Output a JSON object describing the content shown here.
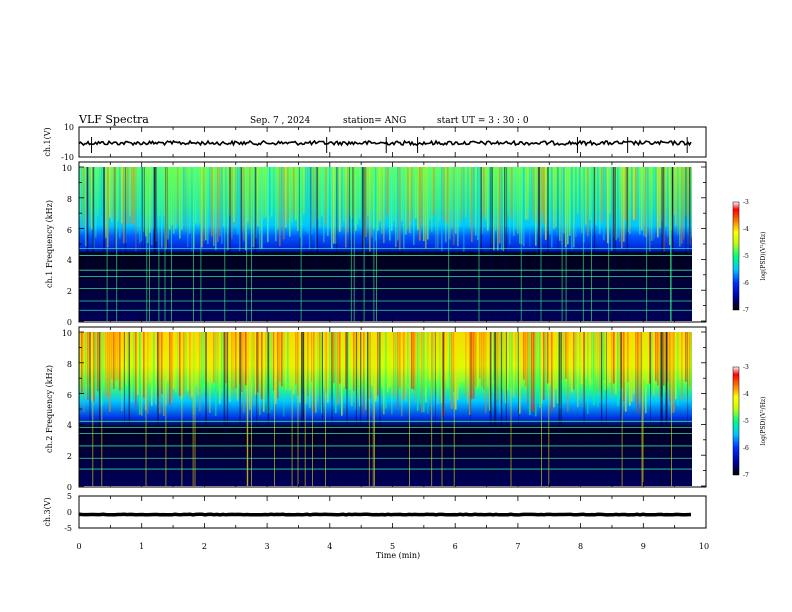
{
  "header": {
    "title": "VLF Spectra",
    "date": "Sep. 7 , 2024",
    "station": "station= ANG",
    "start": "start UT = 3 : 30 : 0"
  },
  "chart_data": [
    {
      "type": "line",
      "panel": "ch1-waveform",
      "ylabel": "ch.1(V)",
      "ylim": [
        -10,
        10
      ],
      "yticks": [
        "10",
        "-10"
      ],
      "xlim": [
        0,
        10
      ],
      "mean": 0,
      "spikes_x": [
        0.2,
        3.95,
        4.9,
        5.4,
        7.95,
        8.75,
        9.7
      ]
    },
    {
      "type": "heatmap",
      "panel": "ch1-spectrogram",
      "ylabel": "ch.1 Frequency (kHz)",
      "ylim": [
        0,
        10
      ],
      "yticks": [
        "0",
        "2",
        "4",
        "6",
        "8",
        "10"
      ],
      "xlim": [
        0,
        9.8
      ],
      "colorbar": {
        "label": "log(PSD)(V²/Hz)",
        "range": [
          -7,
          -3
        ],
        "ticks": [
          "-3",
          "-4",
          "-5",
          "-6",
          "-7"
        ],
        "colors": [
          "#000000",
          "#0000a0",
          "#0030ff",
          "#00c8ff",
          "#00ff80",
          "#c8ff00",
          "#ffff00",
          "#ff8000",
          "#ff0000",
          "#ffffff"
        ]
      },
      "lines_khz": [
        0.7,
        1.3,
        2.1,
        2.9,
        3.3,
        4.25,
        4.7
      ],
      "strong_band_khz": [
        4.5,
        10
      ]
    },
    {
      "type": "heatmap",
      "panel": "ch2-spectrogram",
      "ylabel": "ch.2 Frequency (kHz)",
      "ylim": [
        0,
        10
      ],
      "yticks": [
        "0",
        "2",
        "4",
        "6",
        "8",
        "10"
      ],
      "xlim": [
        0,
        9.8
      ],
      "colorbar": {
        "label": "log(PSD)(V²/Hz)",
        "range": [
          -7,
          -3
        ],
        "ticks": [
          "-3",
          "-4",
          "-5",
          "-6",
          "-7"
        ]
      },
      "lines_khz": [
        1.1,
        1.8,
        2.6,
        3.4,
        3.8,
        4.2
      ],
      "strong_band_khz": [
        4.5,
        10
      ]
    },
    {
      "type": "line",
      "panel": "ch3-waveform",
      "ylabel": "ch.3(V)",
      "ylim": [
        -5,
        5
      ],
      "yticks": [
        "5",
        "0",
        "-5"
      ],
      "xlim": [
        0,
        10
      ],
      "mean": -0.8
    }
  ],
  "xaxis": {
    "label": "Time (min)",
    "ticks": [
      "0",
      "1",
      "2",
      "3",
      "4",
      "5",
      "6",
      "7",
      "8",
      "9",
      "10"
    ]
  }
}
